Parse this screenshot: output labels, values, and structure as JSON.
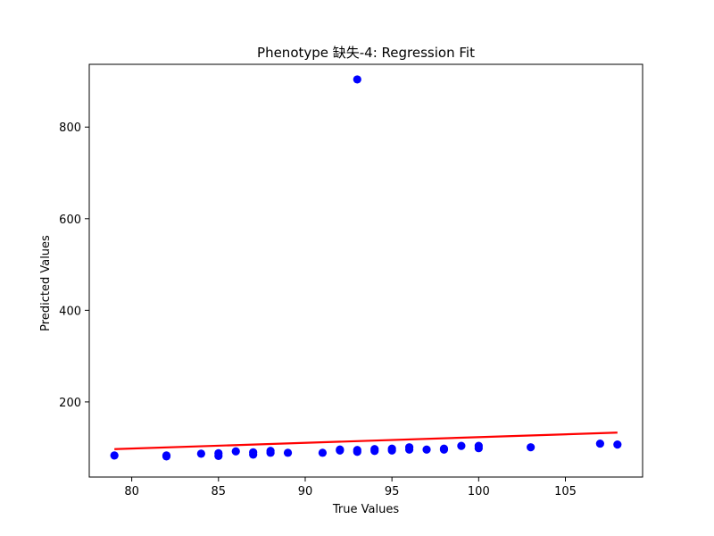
{
  "chart_data": {
    "type": "scatter",
    "title": "Phenotype 缺失-4: Regression Fit",
    "xlabel": "True Values",
    "ylabel": "Predicted Values",
    "xlim": [
      77.55,
      109.45
    ],
    "ylim": [
      36,
      937
    ],
    "xticks": [
      80,
      85,
      90,
      95,
      100,
      105
    ],
    "yticks": [
      200,
      400,
      600,
      800
    ],
    "grid": false,
    "colors": {
      "points": "#0000ff",
      "fit": "#ff0000",
      "axes": "#000000"
    },
    "points": [
      {
        "x": 79,
        "y": 83
      },
      {
        "x": 82,
        "y": 81
      },
      {
        "x": 82,
        "y": 83
      },
      {
        "x": 84,
        "y": 87
      },
      {
        "x": 85,
        "y": 82
      },
      {
        "x": 85,
        "y": 88
      },
      {
        "x": 86,
        "y": 92
      },
      {
        "x": 87,
        "y": 85
      },
      {
        "x": 87,
        "y": 90
      },
      {
        "x": 88,
        "y": 89
      },
      {
        "x": 88,
        "y": 93
      },
      {
        "x": 89,
        "y": 89
      },
      {
        "x": 91,
        "y": 89
      },
      {
        "x": 92,
        "y": 94
      },
      {
        "x": 92,
        "y": 96
      },
      {
        "x": 93,
        "y": 91
      },
      {
        "x": 93,
        "y": 95
      },
      {
        "x": 93,
        "y": 904
      },
      {
        "x": 94,
        "y": 93
      },
      {
        "x": 94,
        "y": 97
      },
      {
        "x": 95,
        "y": 94
      },
      {
        "x": 95,
        "y": 98
      },
      {
        "x": 96,
        "y": 96
      },
      {
        "x": 96,
        "y": 101
      },
      {
        "x": 97,
        "y": 96
      },
      {
        "x": 98,
        "y": 96
      },
      {
        "x": 98,
        "y": 98
      },
      {
        "x": 99,
        "y": 104
      },
      {
        "x": 100,
        "y": 99
      },
      {
        "x": 100,
        "y": 104
      },
      {
        "x": 103,
        "y": 101
      },
      {
        "x": 107,
        "y": 109
      },
      {
        "x": 108,
        "y": 107
      }
    ],
    "fit_line": {
      "x": [
        79,
        108
      ],
      "y": [
        97,
        133
      ]
    }
  }
}
